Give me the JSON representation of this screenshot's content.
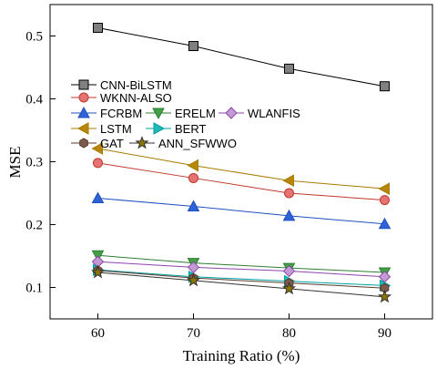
{
  "chart_data": {
    "type": "line",
    "title": "",
    "xlabel": "Training Ratio (%)",
    "ylabel": "MSE",
    "x": [
      60,
      70,
      80,
      90
    ],
    "xlim": [
      55,
      95
    ],
    "ylim": [
      0.05,
      0.55
    ],
    "xticks": [
      60,
      70,
      80,
      90
    ],
    "yticks": [
      0.1,
      0.2,
      0.3,
      0.4,
      0.5
    ],
    "legend_position": "middle-left",
    "grid": false,
    "series": [
      {
        "name": "CNN-BiLSTM",
        "marker": "square",
        "color": "#000000",
        "fill": "#808080",
        "values": [
          0.513,
          0.484,
          0.448,
          0.42
        ]
      },
      {
        "name": "WKNN-ALSO",
        "marker": "circle",
        "color": "#c0392b",
        "fill": "#e57373",
        "values": [
          0.298,
          0.274,
          0.25,
          0.239
        ]
      },
      {
        "name": "FCRBM",
        "marker": "triangle-up",
        "color": "#1f4fbf",
        "fill": "#2d63d6",
        "values": [
          0.242,
          0.229,
          0.214,
          0.201
        ]
      },
      {
        "name": "ERELM",
        "marker": "triangle-down",
        "color": "#2e7d32",
        "fill": "#43a047",
        "values": [
          0.151,
          0.139,
          0.131,
          0.124
        ]
      },
      {
        "name": "WLANFIS",
        "marker": "diamond",
        "color": "#8e44ad",
        "fill": "#c39bd3",
        "values": [
          0.141,
          0.132,
          0.126,
          0.117
        ]
      },
      {
        "name": "LSTM",
        "marker": "triangle-left",
        "color": "#a67c00",
        "fill": "#b8860b",
        "values": [
          0.321,
          0.294,
          0.27,
          0.257
        ]
      },
      {
        "name": "BERT",
        "marker": "triangle-right",
        "color": "#00a0a0",
        "fill": "#22b8b8",
        "values": [
          0.128,
          0.117,
          0.11,
          0.103
        ]
      },
      {
        "name": "GAT",
        "marker": "hexagon",
        "color": "#5a3a2e",
        "fill": "#7b5a4c",
        "values": [
          0.127,
          0.115,
          0.107,
          0.099
        ]
      },
      {
        "name": "ANN_SFWWO",
        "marker": "star",
        "color": "#333333",
        "fill": "#8b7500",
        "values": [
          0.124,
          0.111,
          0.098,
          0.085
        ]
      }
    ]
  }
}
